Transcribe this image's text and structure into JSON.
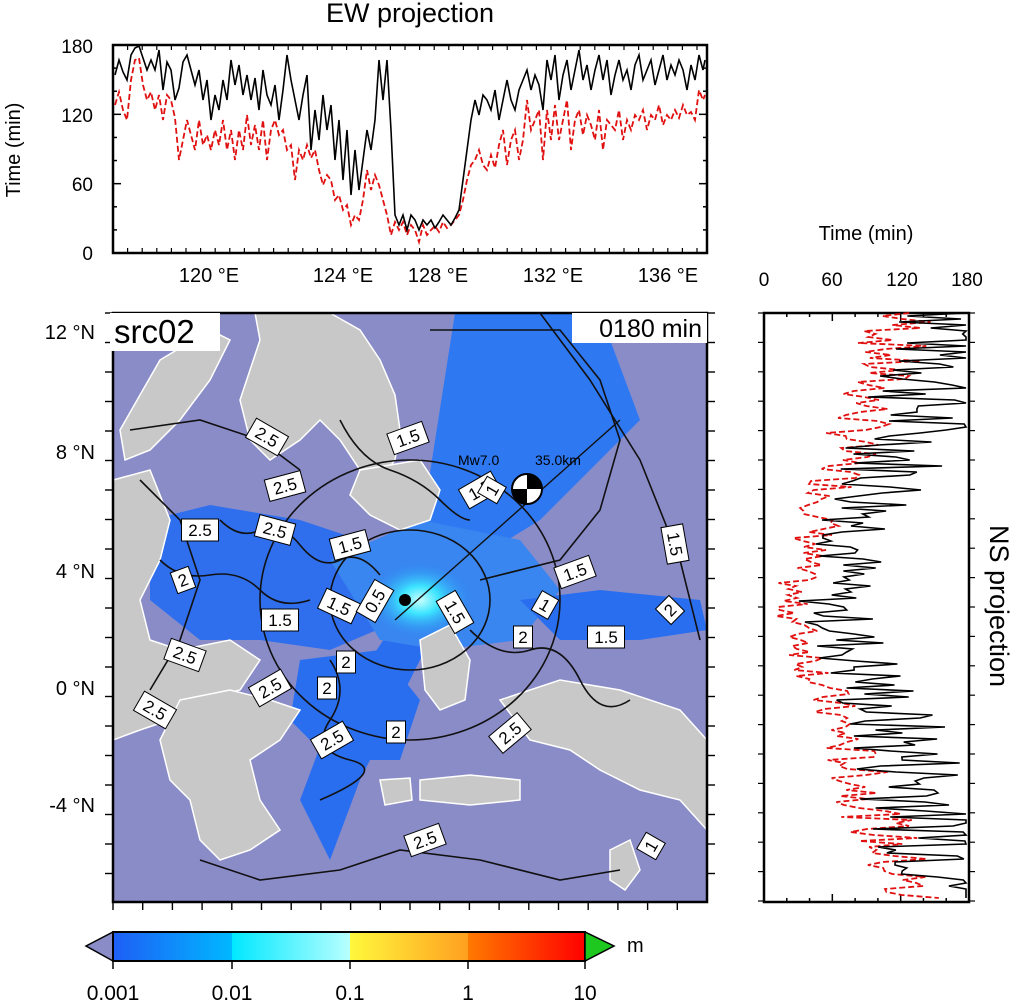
{
  "ew_panel": {
    "title": "EW projection",
    "ylabel": "Time (min)",
    "y_ticks": [
      "0",
      "60",
      "120",
      "180"
    ],
    "x_ticks": [
      "120 °E",
      "124 °E",
      "128 °E",
      "132 °E",
      "136 °E"
    ]
  },
  "ns_panel": {
    "title": "NS projection",
    "xlabel": "Time (min)",
    "x_ticks": [
      "0",
      "60",
      "120",
      "180"
    ]
  },
  "map": {
    "source_label": "src02",
    "time_label": "0180 min",
    "event_label": "Mw7.0",
    "depth_label": "35.0km",
    "lat_ticks": [
      "12 °N",
      "8 °N",
      "4 °N",
      "0 °N",
      "-4 °N"
    ],
    "contour_labels": [
      "2.5",
      "2.5",
      "2.5",
      "2.5",
      "2.5",
      "2.5",
      "2.5",
      "2.5",
      "2.5",
      "2.5",
      "2",
      "2",
      "2",
      "2",
      "2",
      "2",
      "1.5",
      "1.5",
      "1.5",
      "1.5",
      "1.5",
      "1.5",
      "1.5",
      "1.5",
      "1.5",
      "1",
      "1",
      "1",
      "0.5"
    ],
    "colors": {
      "ocean": "#8a8cc8",
      "land": "#c8c8c8",
      "wave_blue": "#2a7bf0"
    }
  },
  "colorbar": {
    "unit": "m",
    "tick_labels": [
      "0.001",
      "0.01",
      "0.1",
      "1",
      "10"
    ],
    "colors": [
      "#1e5ef5",
      "#00c8ff",
      "#fffb3c",
      "#ff7a00",
      "#ff0000",
      "#1ec81e",
      "#8a8cc8"
    ]
  }
}
